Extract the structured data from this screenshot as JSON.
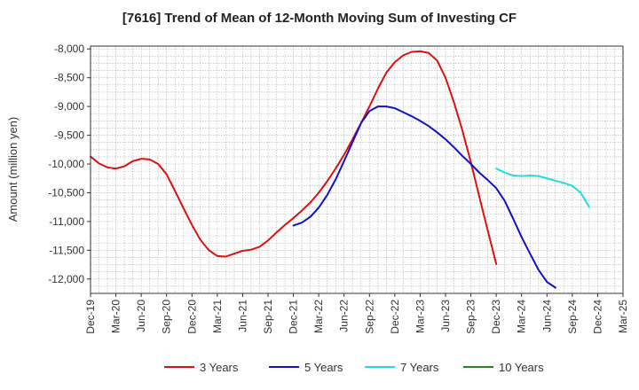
{
  "chart_data": {
    "type": "line",
    "title": "[7616]  Trend of Mean of 12-Month Moving Sum of Investing CF",
    "xlabel": "",
    "ylabel": "Amount (million yen)",
    "ylim": [
      -12250,
      -7950
    ],
    "yticks": [
      -8000,
      -8500,
      -9000,
      -9500,
      -10000,
      -10500,
      -11000,
      -11500,
      -12000
    ],
    "ytick_labels": [
      "-8,000",
      "-8,500",
      "-9,000",
      "-9,500",
      "-10,000",
      "-10,500",
      "-11,000",
      "-11,500",
      "-12,000"
    ],
    "x_categories": [
      "Dec-19",
      "Mar-20",
      "Jun-20",
      "Sep-20",
      "Dec-20",
      "Mar-21",
      "Jun-21",
      "Sep-21",
      "Dec-21",
      "Mar-22",
      "Jun-22",
      "Sep-22",
      "Dec-22",
      "Mar-23",
      "Jun-23",
      "Sep-23",
      "Dec-23",
      "Mar-24",
      "Jun-24",
      "Sep-24",
      "Dec-24",
      "Mar-25"
    ],
    "grid": true,
    "legend_position": "bottom",
    "series": [
      {
        "name": "3 Years",
        "color": "#dd1111",
        "start_index": 0,
        "values": [
          -9870,
          -9990,
          -10060,
          -10080,
          -10040,
          -9950,
          -9910,
          -9920,
          -10000,
          -10180,
          -10470,
          -10770,
          -11060,
          -11320,
          -11500,
          -11600,
          -11610,
          -11560,
          -11510,
          -11490,
          -11440,
          -11330,
          -11190,
          -11060,
          -10940,
          -10810,
          -10670,
          -10500,
          -10300,
          -10080,
          -9840,
          -9570,
          -9290,
          -9000,
          -8690,
          -8410,
          -8230,
          -8110,
          -8050,
          -8040,
          -8070,
          -8200,
          -8500,
          -8930,
          -9420,
          -9970,
          -10570,
          -11160,
          -11740
        ]
      },
      {
        "name": "5 Years",
        "color": "#1111cc",
        "start_index": 24,
        "values": [
          -11070,
          -11020,
          -10920,
          -10760,
          -10540,
          -10270,
          -9950,
          -9620,
          -9290,
          -9080,
          -9000,
          -9000,
          -9030,
          -9100,
          -9170,
          -9250,
          -9340,
          -9450,
          -9570,
          -9710,
          -9860,
          -10000,
          -10150,
          -10280,
          -10420,
          -10640,
          -10950,
          -11270,
          -11560,
          -11840,
          -12050,
          -12150
        ]
      },
      {
        "name": "7 Years",
        "color": "#22dddd",
        "start_index": 48,
        "values": [
          -10080,
          -10150,
          -10200,
          -10210,
          -10200,
          -10210,
          -10250,
          -10290,
          -10330,
          -10380,
          -10500,
          -10750
        ]
      },
      {
        "name": "10 Years",
        "color": "#228822",
        "start_index": 0,
        "values": []
      }
    ]
  }
}
